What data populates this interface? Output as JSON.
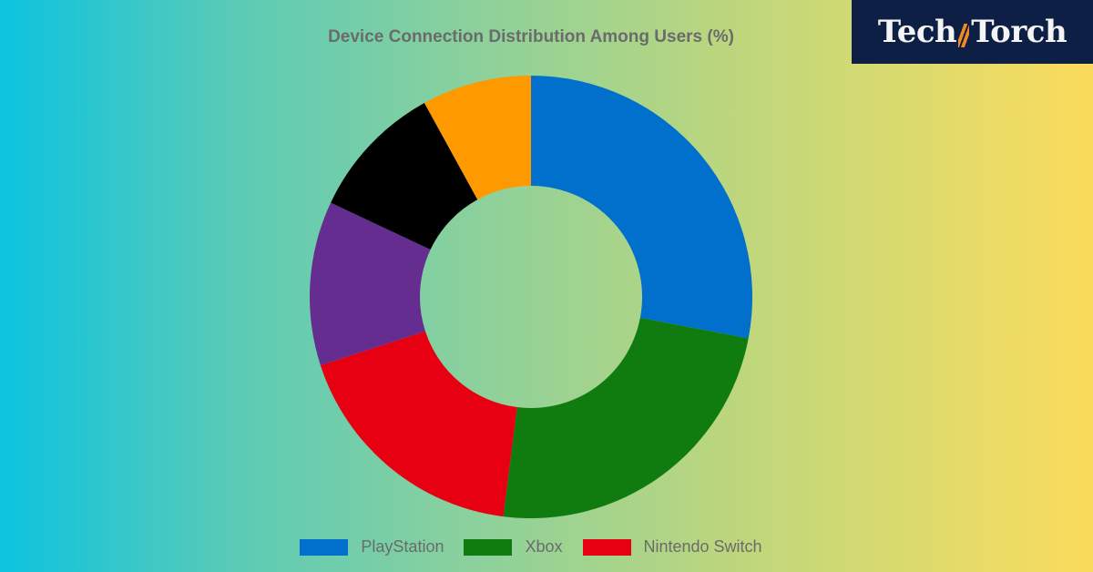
{
  "logo": {
    "text_left": "Tech",
    "text_right": "Torch"
  },
  "chart_data": {
    "type": "pie",
    "donut": true,
    "title": "Device Connection Distribution Among Users (%)",
    "series": [
      {
        "name": "PlayStation",
        "value": 28,
        "color": "#0070CC"
      },
      {
        "name": "Xbox",
        "value": 24,
        "color": "#107C10"
      },
      {
        "name": "Nintendo Switch",
        "value": 18,
        "color": "#E60012"
      },
      {
        "value": 12,
        "color": "#662D91"
      },
      {
        "value": 10,
        "color": "#000000"
      },
      {
        "value": 8,
        "color": "#FF9900"
      }
    ],
    "legend_placement": "bottom"
  }
}
